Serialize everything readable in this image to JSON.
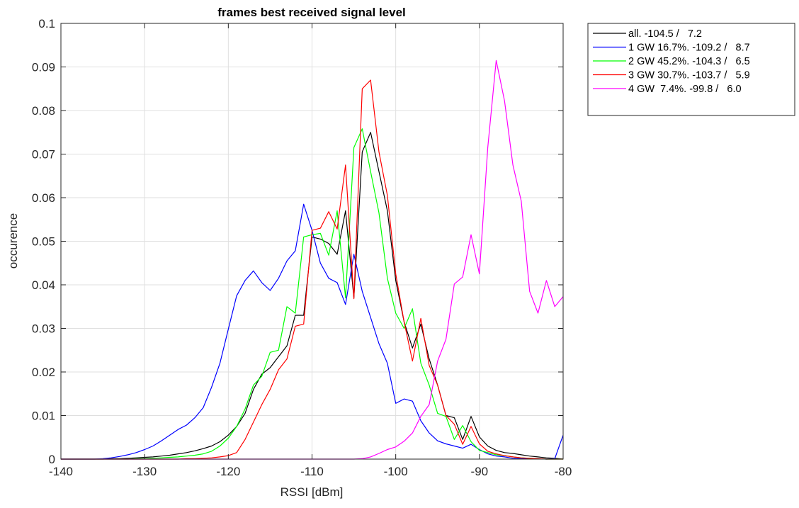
{
  "chart_data": {
    "type": "line",
    "title": "frames best received signal level",
    "xlabel": "RSSI [dBm]",
    "ylabel": "occurence",
    "xlim": [
      -140,
      -80
    ],
    "ylim": [
      0,
      0.1
    ],
    "xticks": [
      -140,
      -130,
      -120,
      -110,
      -100,
      -90,
      -80
    ],
    "yticks": [
      0,
      0.01,
      0.02,
      0.03,
      0.04,
      0.05,
      0.06,
      0.07,
      0.08,
      0.09,
      0.1
    ],
    "xtick_labels": [
      "-140",
      "-130",
      "-120",
      "-110",
      "-100",
      "-90",
      "-80"
    ],
    "ytick_labels": [
      "0",
      "0.01",
      "0.02",
      "0.03",
      "0.04",
      "0.05",
      "0.06",
      "0.07",
      "0.08",
      "0.09",
      "0.1"
    ],
    "grid": true,
    "legend_position": "outside-top-right",
    "x": [
      -140,
      -139,
      -138,
      -137,
      -136,
      -135,
      -134,
      -133,
      -132,
      -131,
      -130,
      -129,
      -128,
      -127,
      -126,
      -125,
      -124,
      -123,
      -122,
      -121,
      -120,
      -119,
      -118,
      -117,
      -116,
      -115,
      -114,
      -113,
      -112,
      -111,
      -110,
      -109,
      -108,
      -107,
      -106,
      -105,
      -104,
      -103,
      -102,
      -101,
      -100,
      -99,
      -98,
      -97,
      -96,
      -95,
      -94,
      -93,
      -92,
      -91,
      -90,
      -89,
      -88,
      -87,
      -86,
      -85,
      -84,
      -83,
      -82,
      -81,
      -80
    ],
    "series": [
      {
        "name": "all. -104.5 /   7.2",
        "color": "#000000",
        "values": [
          0,
          0,
          0,
          0,
          0,
          0,
          0.0001,
          0.0001,
          0.0002,
          0.0003,
          0.0004,
          0.0005,
          0.0007,
          0.0009,
          0.0012,
          0.0015,
          0.0019,
          0.0024,
          0.003,
          0.004,
          0.0055,
          0.0075,
          0.0105,
          0.016,
          0.0195,
          0.021,
          0.0235,
          0.026,
          0.033,
          0.033,
          0.051,
          0.0505,
          0.0495,
          0.047,
          0.057,
          0.037,
          0.0705,
          0.075,
          0.066,
          0.057,
          0.041,
          0.0315,
          0.0255,
          0.031,
          0.023,
          0.017,
          0.01,
          0.0095,
          0.0045,
          0.0098,
          0.0051,
          0.003,
          0.002,
          0.0015,
          0.0013,
          0.001,
          0.0007,
          0.0005,
          0.0003,
          0.0002,
          0
        ]
      },
      {
        "name": "1 GW 16.7%. -109.2 /   8.7",
        "color": "#0000ff",
        "values": [
          0,
          0,
          0,
          0,
          0,
          0.0001,
          0.0003,
          0.0006,
          0.001,
          0.0015,
          0.0022,
          0.003,
          0.0042,
          0.0055,
          0.0068,
          0.0078,
          0.0095,
          0.0118,
          0.0165,
          0.022,
          0.0298,
          0.0375,
          0.041,
          0.0432,
          0.0405,
          0.0387,
          0.0415,
          0.0455,
          0.0478,
          0.0585,
          0.0525,
          0.045,
          0.0415,
          0.0405,
          0.0355,
          0.047,
          0.0385,
          0.0325,
          0.0265,
          0.022,
          0.0128,
          0.0138,
          0.0133,
          0.0088,
          0.006,
          0.0042,
          0.0035,
          0.003,
          0.0025,
          0.0034,
          0.0022,
          0.0012,
          0.0007,
          0.0005,
          0.0002,
          0.0001,
          0.0001,
          0.0001,
          0,
          0.0001,
          0.0055
        ]
      },
      {
        "name": "2 GW 45.2%. -104.3 /   6.5",
        "color": "#00ff00",
        "values": [
          0,
          0,
          0,
          0,
          0,
          0,
          0,
          0,
          0,
          0.0001,
          0.0001,
          0.0002,
          0.0003,
          0.0004,
          0.0005,
          0.0007,
          0.0009,
          0.0012,
          0.0018,
          0.003,
          0.0048,
          0.0075,
          0.0115,
          0.017,
          0.019,
          0.0245,
          0.025,
          0.035,
          0.0335,
          0.051,
          0.0515,
          0.0518,
          0.0468,
          0.057,
          0.037,
          0.0715,
          0.0758,
          0.066,
          0.0565,
          0.0415,
          0.0335,
          0.03,
          0.0345,
          0.022,
          0.017,
          0.0105,
          0.0098,
          0.0045,
          0.0077,
          0.004,
          0.002,
          0.0015,
          0.001,
          0.0008,
          0.0005,
          0.0003,
          0.0002,
          0.0001,
          0,
          0,
          0
        ]
      },
      {
        "name": "3 GW 30.7%. -103.7 /   5.9",
        "color": "#ff0000",
        "values": [
          0,
          0,
          0,
          0,
          0,
          0,
          0,
          0,
          0,
          0,
          0,
          0,
          0,
          0,
          0,
          0.0001,
          0.0001,
          0.0002,
          0.0003,
          0.0005,
          0.0008,
          0.0015,
          0.0045,
          0.0085,
          0.0125,
          0.016,
          0.0205,
          0.023,
          0.0305,
          0.031,
          0.0525,
          0.053,
          0.0568,
          0.0528,
          0.0675,
          0.0368,
          0.085,
          0.087,
          0.0705,
          0.0605,
          0.0425,
          0.0315,
          0.0225,
          0.0323,
          0.0215,
          0.017,
          0.01,
          0.008,
          0.0034,
          0.0075,
          0.0035,
          0.0018,
          0.0012,
          0.0008,
          0.0005,
          0.0003,
          0.0002,
          0.0001,
          0,
          0,
          0
        ]
      },
      {
        "name": "4 GW  7.4%. -99.8 /   6.0",
        "color": "#ff00ff",
        "values": [
          0,
          0,
          0,
          0,
          0,
          0,
          0,
          0,
          0,
          0,
          0,
          0,
          0,
          0,
          0,
          0,
          0,
          0,
          0,
          0,
          0,
          0,
          0,
          0,
          0,
          0,
          0,
          0,
          0,
          0,
          0,
          0,
          0,
          0,
          0,
          0,
          0.0001,
          0.0005,
          0.0013,
          0.0022,
          0.0028,
          0.0041,
          0.006,
          0.0098,
          0.0125,
          0.0225,
          0.0275,
          0.0402,
          0.0418,
          0.0515,
          0.0425,
          0.0715,
          0.0915,
          0.0822,
          0.0675,
          0.0592,
          0.0385,
          0.0335,
          0.041,
          0.035,
          0.0373
        ]
      }
    ]
  }
}
